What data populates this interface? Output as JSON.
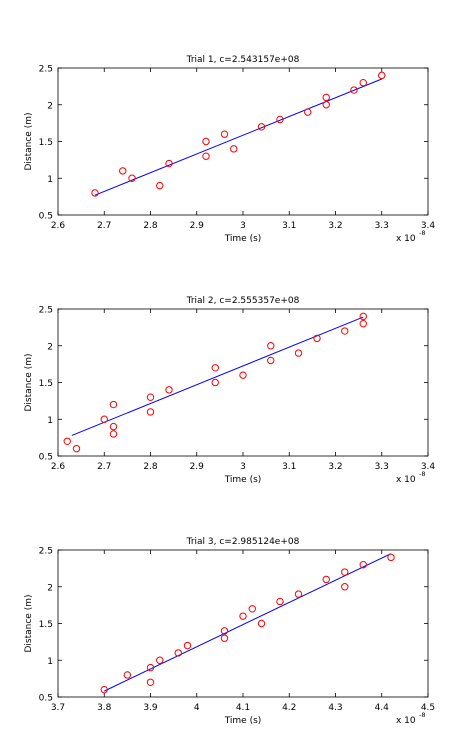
{
  "chart_data": [
    {
      "type": "scatter",
      "title": "Trial 1, c=2.543157e+08",
      "xlabel": "Time (s)",
      "ylabel": "Distance (m)",
      "x_exponent_label": "x 10",
      "x_exponent": "-8",
      "xlim": [
        2.6,
        3.4
      ],
      "ylim": [
        0.5,
        2.5
      ],
      "xticks": [
        "2.6",
        "2.7",
        "2.8",
        "2.9",
        "3",
        "3.1",
        "3.2",
        "3.3",
        "3.4"
      ],
      "yticks": [
        "0.5",
        "1",
        "1.5",
        "2",
        "2.5"
      ],
      "grid": false,
      "marker_color": "#ff0000",
      "line_color": "#0000ff",
      "points": [
        [
          2.68,
          0.8
        ],
        [
          2.74,
          1.1
        ],
        [
          2.76,
          1.0
        ],
        [
          2.82,
          0.9
        ],
        [
          2.84,
          1.2
        ],
        [
          2.92,
          1.3
        ],
        [
          2.92,
          1.5
        ],
        [
          2.96,
          1.6
        ],
        [
          2.98,
          1.4
        ],
        [
          3.04,
          1.7
        ],
        [
          3.08,
          1.8
        ],
        [
          3.14,
          1.9
        ],
        [
          3.18,
          2.0
        ],
        [
          3.18,
          2.1
        ],
        [
          3.24,
          2.2
        ],
        [
          3.26,
          2.3
        ],
        [
          3.3,
          2.4
        ]
      ],
      "fit": [
        [
          2.68,
          0.77
        ],
        [
          3.3,
          2.35
        ]
      ]
    },
    {
      "type": "scatter",
      "title": "Trial 2, c=2.555357e+08",
      "xlabel": "Time (s)",
      "ylabel": "Distance (m)",
      "x_exponent_label": "x 10",
      "x_exponent": "-8",
      "xlim": [
        2.6,
        3.4
      ],
      "ylim": [
        0.5,
        2.5
      ],
      "xticks": [
        "2.6",
        "2.7",
        "2.8",
        "2.9",
        "3",
        "3.1",
        "3.2",
        "3.3",
        "3.4"
      ],
      "yticks": [
        "0.5",
        "1",
        "1.5",
        "2",
        "2.5"
      ],
      "grid": false,
      "marker_color": "#ff0000",
      "line_color": "#0000ff",
      "points": [
        [
          2.62,
          0.7
        ],
        [
          2.64,
          0.6
        ],
        [
          2.7,
          1.0
        ],
        [
          2.72,
          0.9
        ],
        [
          2.72,
          0.8
        ],
        [
          2.72,
          1.2
        ],
        [
          2.8,
          1.3
        ],
        [
          2.8,
          1.1
        ],
        [
          2.84,
          1.4
        ],
        [
          2.94,
          1.5
        ],
        [
          2.94,
          1.7
        ],
        [
          3.0,
          1.6
        ],
        [
          3.06,
          1.8
        ],
        [
          3.06,
          2.0
        ],
        [
          3.12,
          1.9
        ],
        [
          3.16,
          2.1
        ],
        [
          3.22,
          2.2
        ],
        [
          3.26,
          2.3
        ],
        [
          3.26,
          2.4
        ]
      ],
      "fit": [
        [
          2.63,
          0.78
        ],
        [
          3.26,
          2.39
        ]
      ]
    },
    {
      "type": "scatter",
      "title": "Trial 3, c=2.985124e+08",
      "xlabel": "Time (s)",
      "ylabel": "Distance (m)",
      "x_exponent_label": "x 10",
      "x_exponent": "-8",
      "xlim": [
        3.7,
        4.5
      ],
      "ylim": [
        0.5,
        2.5
      ],
      "xticks": [
        "3.7",
        "3.8",
        "3.9",
        "4",
        "4.1",
        "4.2",
        "4.3",
        "4.4",
        "4.5"
      ],
      "yticks": [
        "0.5",
        "1",
        "1.5",
        "2",
        "2.5"
      ],
      "grid": false,
      "marker_color": "#ff0000",
      "line_color": "#0000ff",
      "points": [
        [
          3.8,
          0.6
        ],
        [
          3.85,
          0.8
        ],
        [
          3.9,
          0.9
        ],
        [
          3.9,
          0.7
        ],
        [
          3.92,
          1.0
        ],
        [
          3.96,
          1.1
        ],
        [
          3.98,
          1.2
        ],
        [
          4.06,
          1.3
        ],
        [
          4.06,
          1.4
        ],
        [
          4.1,
          1.6
        ],
        [
          4.12,
          1.7
        ],
        [
          4.14,
          1.5
        ],
        [
          4.18,
          1.8
        ],
        [
          4.22,
          1.9
        ],
        [
          4.28,
          2.1
        ],
        [
          4.32,
          2.0
        ],
        [
          4.32,
          2.2
        ],
        [
          4.36,
          2.3
        ],
        [
          4.42,
          2.4
        ]
      ],
      "fit": [
        [
          3.8,
          0.58
        ],
        [
          4.42,
          2.45
        ]
      ]
    }
  ]
}
